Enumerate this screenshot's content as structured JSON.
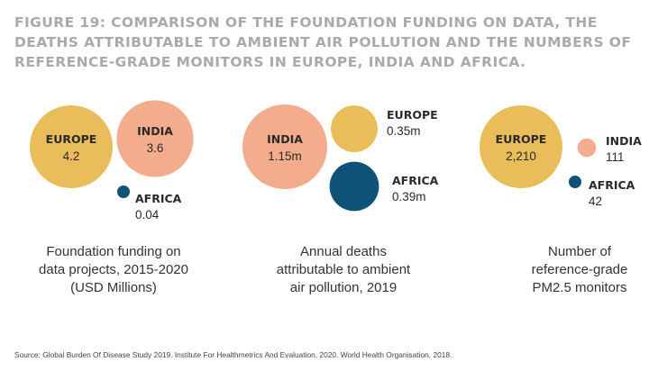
{
  "title": "FIGURE 19: COMPARISON OF THE FOUNDATION FUNDING ON DATA, THE DEATHS ATTRIBUTABLE TO AMBIENT AIR POLLUTION AND THE NUMBERS OF REFERENCE-GRADE MONITORS IN EUROPE, INDIA AND AFRICA.",
  "source": "Source: Global Burden Of Disease Study 2019. Institute For Healthmetrics And Evaluation, 2020. World Health Organisation, 2018.",
  "colors": {
    "EUROPE": "#e9bd5a",
    "INDIA": "#f4ad8c",
    "AFRICA": "#0f5277",
    "title": "#a7aca6"
  },
  "chart_data": [
    {
      "type": "bubble",
      "caption": [
        "Foundation funding on",
        "data projects, 2015-2020",
        "(USD Millions)"
      ],
      "series": [
        {
          "name": "EUROPE",
          "value": 4.2,
          "label": "4.2"
        },
        {
          "name": "INDIA",
          "value": 3.6,
          "label": "3.6"
        },
        {
          "name": "AFRICA",
          "value": 0.04,
          "label": "0.04"
        }
      ]
    },
    {
      "type": "bubble",
      "caption": [
        "Annual deaths",
        "attributable to ambient",
        "air pollution, 2019"
      ],
      "series": [
        {
          "name": "INDIA",
          "value": 1150000,
          "label": "1.15m"
        },
        {
          "name": "EUROPE",
          "value": 350000,
          "label": "0.35m"
        },
        {
          "name": "AFRICA",
          "value": 390000,
          "label": "0.39m"
        }
      ]
    },
    {
      "type": "bubble",
      "caption": [
        "Number of",
        "reference-grade",
        "PM2.5 monitors"
      ],
      "series": [
        {
          "name": "EUROPE",
          "value": 2210,
          "label": "2,210"
        },
        {
          "name": "INDIA",
          "value": 111,
          "label": "111"
        },
        {
          "name": "AFRICA",
          "value": 42,
          "label": "42"
        }
      ]
    }
  ]
}
